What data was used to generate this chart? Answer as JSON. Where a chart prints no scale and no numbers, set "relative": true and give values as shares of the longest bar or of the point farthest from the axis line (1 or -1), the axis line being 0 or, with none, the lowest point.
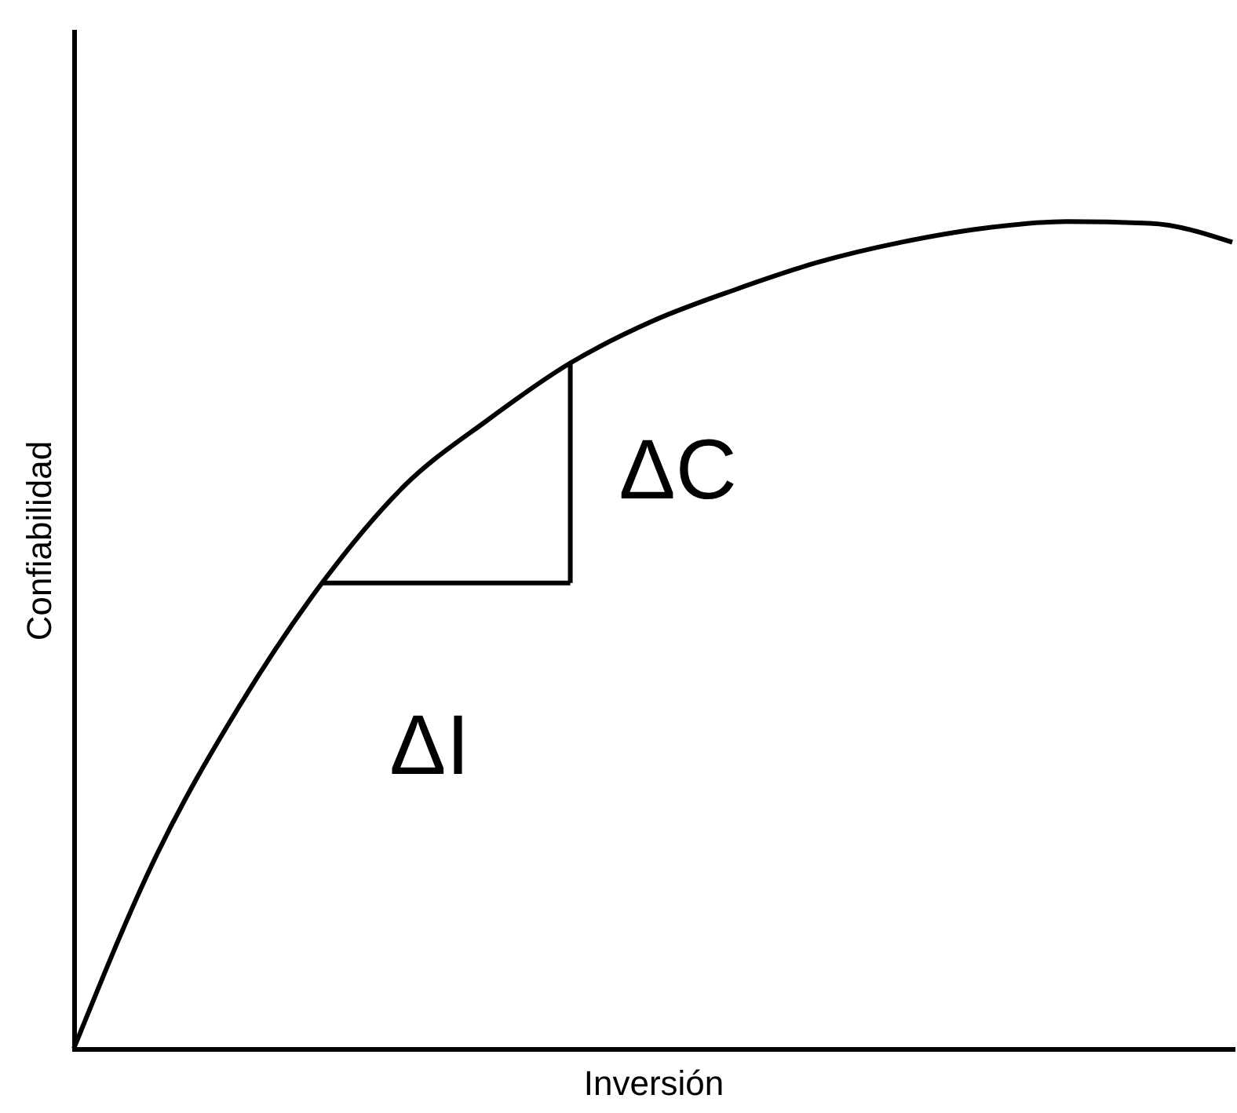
{
  "chart_data": {
    "type": "line",
    "relative": true,
    "xlabel": "Inversión",
    "ylabel": "Confiabilidad",
    "categories": [
      null,
      null,
      null,
      null,
      null,
      null,
      null,
      null,
      null,
      null,
      null,
      null,
      null,
      null,
      null
    ],
    "series": [
      {
        "color": "#000000",
        "values": [
          0,
          0.234,
          0.414,
          0.563,
          0.681,
          0.76,
          0.829,
          0.88,
          0.918,
          0.951,
          0.975,
          0.992,
          1,
          0.998,
          0.975
        ]
      },
      {
        "color": "#000000",
        "values": [
          null,
          null,
          null,
          0.563,
          null,
          null,
          0.563,
          null,
          null,
          null,
          null,
          null,
          null,
          null,
          null
        ]
      }
    ],
    "annotations": [
      "ΔC",
      "ΔI"
    ],
    "grid": false,
    "marker": "none",
    "line_style": "solid",
    "tick_labels": false
  }
}
